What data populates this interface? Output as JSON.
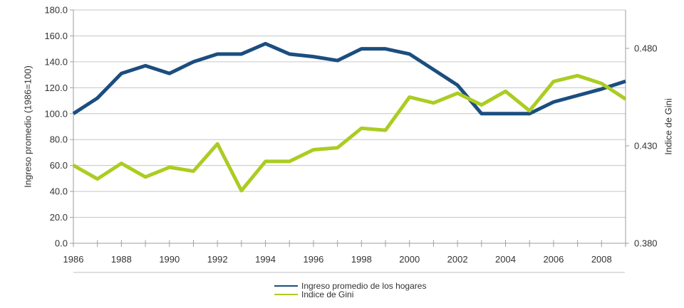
{
  "chart_data": {
    "type": "line",
    "title": "",
    "x": [
      1986,
      1987,
      1988,
      1989,
      1990,
      1991,
      1992,
      1993,
      1994,
      1995,
      1996,
      1997,
      1998,
      1999,
      2000,
      2001,
      2002,
      2003,
      2004,
      2005,
      2006,
      2007,
      2008,
      2009
    ],
    "x_axis": {
      "labeled_years": [
        1986,
        1988,
        1990,
        1992,
        1994,
        1996,
        1998,
        2000,
        2002,
        2004,
        2006,
        2008
      ],
      "tick_every_year": true
    },
    "left_axis": {
      "title": "Ingreso promedio (1986=100)",
      "min": 0,
      "max": 180,
      "step": 20,
      "tick_labels": [
        "0.0",
        "20.0",
        "40.0",
        "60.0",
        "80.0",
        "100.0",
        "120.0",
        "140.0",
        "160.0",
        "180.0"
      ]
    },
    "right_axis": {
      "title": "Indice de Gini",
      "min": 0.38,
      "max": 0.48,
      "tick_values": [
        0.38,
        0.43,
        0.48
      ],
      "tick_labels": [
        "0.380",
        "0.430",
        "0.480"
      ]
    },
    "series": [
      {
        "name": "Ingreso promedio de los hogares",
        "axis": "left",
        "color": "#1B4E7E",
        "values": [
          100,
          112,
          131,
          137,
          131,
          140,
          146,
          146,
          154,
          146,
          144,
          141,
          150,
          150,
          146,
          134,
          122,
          100,
          100,
          100,
          109,
          114,
          119,
          125
        ]
      },
      {
        "name": "Indice de Gini",
        "axis": "right",
        "color": "#ABCC22",
        "values": [
          0.42,
          0.413,
          0.421,
          0.414,
          0.419,
          0.417,
          0.431,
          0.407,
          0.422,
          0.422,
          0.428,
          0.429,
          0.439,
          0.438,
          0.455,
          0.452,
          0.457,
          0.451,
          0.458,
          0.448,
          0.463,
          0.466,
          0.462,
          0.454
        ]
      }
    ],
    "legend_position": "bottom",
    "grid": true
  },
  "colors": {
    "background": "#FFFFFF",
    "gridline": "#C6C6C6",
    "axis": "#9E9E9E",
    "tick": "#9E9E9E",
    "label": "#333333",
    "separator": "#BFBFBF"
  }
}
